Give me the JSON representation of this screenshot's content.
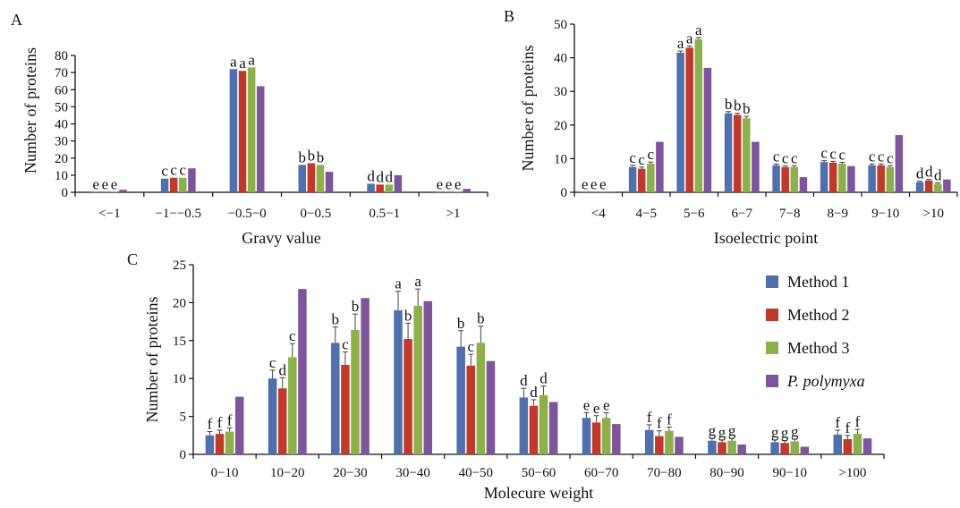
{
  "legend": {
    "series": [
      {
        "name": "Method 1",
        "color": "#4f6fad"
      },
      {
        "name": "Method 2",
        "color": "#c0392b"
      },
      {
        "name": "Method 3",
        "color": "#8db04a"
      },
      {
        "name": "P. polymyxa",
        "color": "#7d559b"
      }
    ]
  },
  "chart_data": [
    {
      "panel": "A",
      "type": "bar",
      "xlabel": "Gravy value",
      "ylabel": "Number of proteins",
      "ylim": [
        0,
        80
      ],
      "yticks": [
        0,
        10,
        20,
        30,
        40,
        50,
        60,
        70,
        80
      ],
      "error_bars": false,
      "categories": [
        "<−1",
        "−1−−0.5",
        "−0.5−0",
        "0−0.5",
        "0.5−1",
        ">1"
      ],
      "series": [
        {
          "name": "Method 1",
          "values": [
            0.3,
            8,
            72,
            16,
            5,
            0.3
          ]
        },
        {
          "name": "Method 2",
          "values": [
            0.3,
            8.5,
            71,
            17,
            4.5,
            0.3
          ]
        },
        {
          "name": "Method 3",
          "values": [
            0.3,
            8.5,
            73,
            16,
            4.5,
            0.3
          ]
        },
        {
          "name": "P. polymyxa",
          "values": [
            1.5,
            14,
            62,
            12,
            10,
            2
          ]
        }
      ],
      "annotations": [
        [
          "e",
          "c",
          "a",
          "b",
          "d",
          "e"
        ],
        [
          "e",
          "c",
          "a",
          "b",
          "d",
          "e"
        ],
        [
          "e",
          "c",
          "a",
          "b",
          "d",
          "e"
        ]
      ]
    },
    {
      "panel": "B",
      "type": "bar",
      "xlabel": "Isoelectric point",
      "ylabel": "Number of proteins",
      "ylim": [
        0,
        50
      ],
      "yticks": [
        0,
        10,
        20,
        30,
        40,
        50
      ],
      "error_bars": true,
      "categories": [
        "<4",
        "4−5",
        "5−6",
        "6−7",
        "7−8",
        "8−9",
        "9−10",
        ">10"
      ],
      "series": [
        {
          "name": "Method 1",
          "values": [
            0.1,
            7.5,
            41.5,
            23.5,
            8,
            9,
            8,
            3
          ],
          "errors": [
            0,
            0.5,
            0.5,
            0.5,
            0.4,
            0.4,
            0.4,
            0.3
          ]
        },
        {
          "name": "Method 2",
          "values": [
            0.1,
            7,
            43,
            23,
            7.5,
            8.8,
            8,
            3.5
          ],
          "errors": [
            0,
            0.5,
            0.5,
            0.5,
            0.4,
            0.4,
            0.4,
            0.3
          ]
        },
        {
          "name": "Method 3",
          "values": [
            0.1,
            8.5,
            45.5,
            22,
            7.5,
            8.5,
            7.5,
            2.5
          ],
          "errors": [
            0,
            0.5,
            0.5,
            0.6,
            0.4,
            0.4,
            0.4,
            0.3
          ]
        },
        {
          "name": "P. polymyxa",
          "values": [
            0.1,
            15,
            37,
            15,
            4.5,
            7.8,
            17,
            3.8
          ],
          "errors": [
            0,
            0,
            0,
            0,
            0,
            0,
            0,
            0
          ]
        }
      ],
      "annotations": [
        [
          "e",
          "c",
          "a",
          "b",
          "c",
          "c",
          "c",
          "d"
        ],
        [
          "e",
          "c",
          "a",
          "b",
          "c",
          "c",
          "c",
          "d"
        ],
        [
          "e",
          "c",
          "a",
          "b",
          "c",
          "c",
          "c",
          "d"
        ]
      ]
    },
    {
      "panel": "C",
      "type": "bar",
      "xlabel": "Molecure weight",
      "ylabel": "Number of proteins",
      "ylim": [
        0,
        25
      ],
      "yticks": [
        0,
        5,
        10,
        15,
        20,
        25
      ],
      "error_bars": true,
      "categories": [
        "0−10",
        "10−20",
        "20−30",
        "30−40",
        "40−50",
        "50−60",
        "60−70",
        "70−80",
        "80−90",
        "90−10",
        ">100"
      ],
      "series": [
        {
          "name": "Method 1",
          "values": [
            2.5,
            10,
            14.7,
            19,
            14.2,
            7.5,
            4.8,
            3.2,
            1.8,
            1.6,
            2.6
          ],
          "errors": [
            0.5,
            1.1,
            2.1,
            2.5,
            2.1,
            1.2,
            0.7,
            0.7,
            0.3,
            0.3,
            0.6
          ]
        },
        {
          "name": "Method 2",
          "values": [
            2.7,
            8.7,
            11.8,
            15.2,
            11.7,
            6.4,
            4.2,
            2.4,
            1.6,
            1.5,
            2
          ],
          "errors": [
            0.5,
            1.4,
            1.7,
            2.1,
            1.5,
            0.8,
            0.9,
            0.7,
            0.3,
            0.3,
            0.5
          ]
        },
        {
          "name": "Method 3",
          "values": [
            3,
            12.8,
            16.4,
            19.6,
            14.7,
            7.8,
            4.8,
            3.1,
            1.8,
            1.7,
            2.7
          ],
          "errors": [
            0.5,
            1.8,
            2.1,
            2.2,
            2.2,
            1.2,
            0.7,
            0.5,
            0.3,
            0.3,
            0.6
          ]
        },
        {
          "name": "P. polymyxa",
          "values": [
            7.6,
            21.8,
            20.6,
            20.2,
            12.3,
            6.9,
            4,
            2.3,
            1.3,
            1,
            2.1
          ],
          "errors": [
            0,
            0,
            0,
            0,
            0,
            0,
            0,
            0,
            0,
            0,
            0
          ]
        }
      ],
      "annotations": [
        [
          "f",
          "c",
          "b",
          "a",
          "b",
          "d",
          "e",
          "f",
          "g",
          "g",
          "f"
        ],
        [
          "f",
          "d",
          "c",
          "b",
          "c",
          "d",
          "e",
          "f",
          "g",
          "g",
          "f"
        ],
        [
          "f",
          "c",
          "b",
          "a",
          "b",
          "d",
          "e",
          "f",
          "g",
          "g",
          "f"
        ]
      ]
    }
  ]
}
